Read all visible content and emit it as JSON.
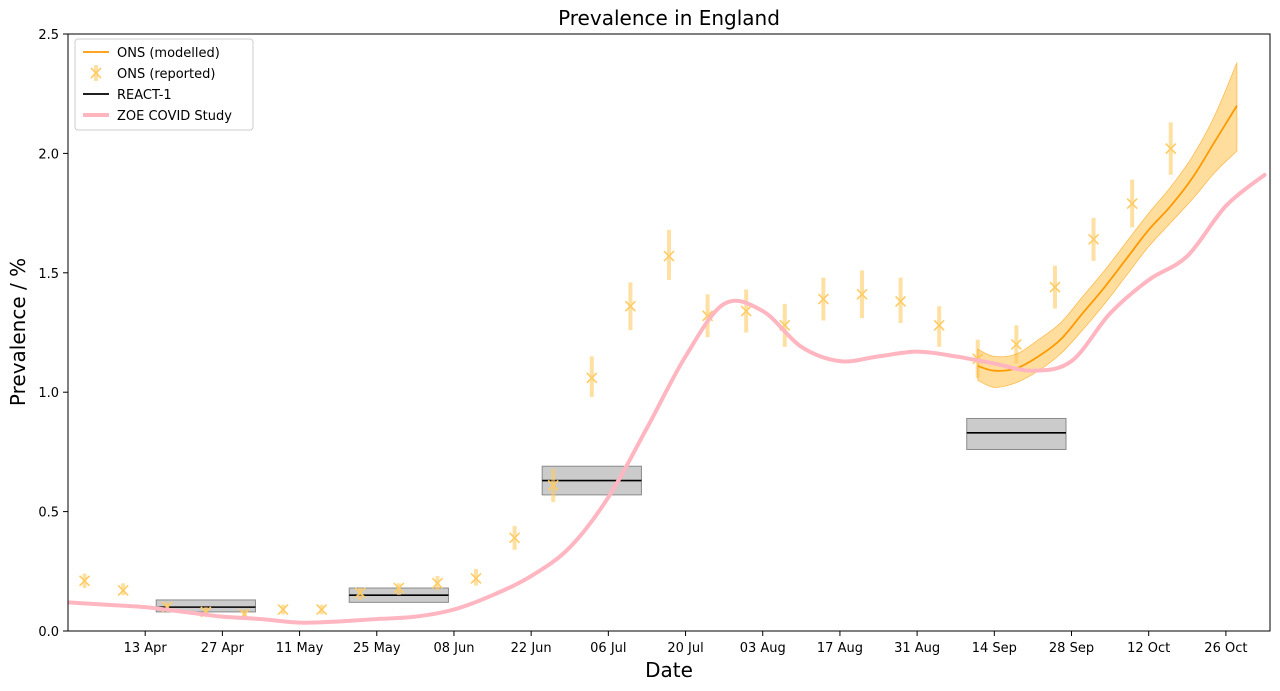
{
  "chart_data": {
    "type": "line",
    "title": "Prevalence in England",
    "xlabel": "Date",
    "ylabel": "Prevalence / %",
    "xlim": [
      "2021-03-30",
      "2021-11-03"
    ],
    "ylim": [
      0,
      2.5
    ],
    "x_ticks": [
      {
        "date": "2021-04-13",
        "label": "13 Apr"
      },
      {
        "date": "2021-04-27",
        "label": "27 Apr"
      },
      {
        "date": "2021-05-11",
        "label": "11 May"
      },
      {
        "date": "2021-05-25",
        "label": "25 May"
      },
      {
        "date": "2021-06-08",
        "label": "08 Jun"
      },
      {
        "date": "2021-06-22",
        "label": "22 Jun"
      },
      {
        "date": "2021-07-06",
        "label": "06 Jul"
      },
      {
        "date": "2021-07-20",
        "label": "20 Jul"
      },
      {
        "date": "2021-08-03",
        "label": "03 Aug"
      },
      {
        "date": "2021-08-17",
        "label": "17 Aug"
      },
      {
        "date": "2021-08-31",
        "label": "31 Aug"
      },
      {
        "date": "2021-09-14",
        "label": "14 Sep"
      },
      {
        "date": "2021-09-28",
        "label": "28 Sep"
      },
      {
        "date": "2021-10-12",
        "label": "12 Oct"
      },
      {
        "date": "2021-10-26",
        "label": "26 Oct"
      }
    ],
    "y_ticks": [
      {
        "value": 0,
        "label": "0.0"
      },
      {
        "value": 0.5,
        "label": "0.5"
      },
      {
        "value": 1.0,
        "label": "1.0"
      },
      {
        "value": 1.5,
        "label": "1.5"
      },
      {
        "value": 2.0,
        "label": "2.0"
      },
      {
        "value": 2.5,
        "label": "2.5"
      }
    ],
    "legend": {
      "position": "top-left",
      "entries": [
        {
          "label": "ONS (modelled)",
          "style": "line",
          "color": "#ff9900"
        },
        {
          "label": "ONS (reported)",
          "style": "marker",
          "color": "#ffcc66"
        },
        {
          "label": "REACT-1",
          "style": "line",
          "color": "#000000"
        },
        {
          "label": "ZOE COVID Study",
          "style": "thick-line",
          "color": "#ffb6c1"
        }
      ]
    },
    "series": [
      {
        "name": "ONS (modelled)",
        "color": "#ff9900",
        "band_color": "#ffc34d",
        "points": [
          {
            "date": "2021-09-11",
            "value": 1.11,
            "low": 1.05,
            "high": 1.18
          },
          {
            "date": "2021-09-14",
            "value": 1.09,
            "low": 1.02,
            "high": 1.15
          },
          {
            "date": "2021-09-18",
            "value": 1.1,
            "low": 1.04,
            "high": 1.16
          },
          {
            "date": "2021-09-22",
            "value": 1.15,
            "low": 1.09,
            "high": 1.22
          },
          {
            "date": "2021-09-26",
            "value": 1.22,
            "low": 1.16,
            "high": 1.29
          },
          {
            "date": "2021-09-30",
            "value": 1.33,
            "low": 1.26,
            "high": 1.4
          },
          {
            "date": "2021-10-04",
            "value": 1.44,
            "low": 1.37,
            "high": 1.51
          },
          {
            "date": "2021-10-08",
            "value": 1.56,
            "low": 1.49,
            "high": 1.63
          },
          {
            "date": "2021-10-12",
            "value": 1.68,
            "low": 1.61,
            "high": 1.75
          },
          {
            "date": "2021-10-16",
            "value": 1.78,
            "low": 1.71,
            "high": 1.86
          },
          {
            "date": "2021-10-20",
            "value": 1.9,
            "low": 1.81,
            "high": 1.99
          },
          {
            "date": "2021-10-24",
            "value": 2.05,
            "low": 1.92,
            "high": 2.16
          },
          {
            "date": "2021-10-28",
            "value": 2.2,
            "low": 2.01,
            "high": 2.38
          }
        ]
      },
      {
        "name": "ONS (reported)",
        "color": "#ffcc66",
        "points": [
          {
            "date": "2021-04-02",
            "value": 0.21,
            "low": 0.18,
            "high": 0.24
          },
          {
            "date": "2021-04-09",
            "value": 0.17,
            "low": 0.15,
            "high": 0.2
          },
          {
            "date": "2021-04-17",
            "value": 0.1,
            "low": 0.08,
            "high": 0.12
          },
          {
            "date": "2021-04-24",
            "value": 0.08,
            "low": 0.06,
            "high": 0.1
          },
          {
            "date": "2021-05-01",
            "value": 0.07,
            "low": 0.05,
            "high": 0.09
          },
          {
            "date": "2021-05-08",
            "value": 0.09,
            "low": 0.07,
            "high": 0.11
          },
          {
            "date": "2021-05-15",
            "value": 0.09,
            "low": 0.07,
            "high": 0.11
          },
          {
            "date": "2021-05-22",
            "value": 0.16,
            "low": 0.13,
            "high": 0.18
          },
          {
            "date": "2021-05-29",
            "value": 0.18,
            "low": 0.15,
            "high": 0.2
          },
          {
            "date": "2021-06-05",
            "value": 0.2,
            "low": 0.17,
            "high": 0.23
          },
          {
            "date": "2021-06-12",
            "value": 0.22,
            "low": 0.19,
            "high": 0.26
          },
          {
            "date": "2021-06-19",
            "value": 0.39,
            "low": 0.34,
            "high": 0.44
          },
          {
            "date": "2021-06-26",
            "value": 0.61,
            "low": 0.54,
            "high": 0.68
          },
          {
            "date": "2021-07-03",
            "value": 1.06,
            "low": 0.98,
            "high": 1.15
          },
          {
            "date": "2021-07-10",
            "value": 1.36,
            "low": 1.26,
            "high": 1.46
          },
          {
            "date": "2021-07-17",
            "value": 1.57,
            "low": 1.47,
            "high": 1.68
          },
          {
            "date": "2021-07-24",
            "value": 1.32,
            "low": 1.23,
            "high": 1.41
          },
          {
            "date": "2021-07-31",
            "value": 1.34,
            "low": 1.25,
            "high": 1.43
          },
          {
            "date": "2021-08-07",
            "value": 1.28,
            "low": 1.19,
            "high": 1.37
          },
          {
            "date": "2021-08-14",
            "value": 1.39,
            "low": 1.3,
            "high": 1.48
          },
          {
            "date": "2021-08-21",
            "value": 1.41,
            "low": 1.31,
            "high": 1.51
          },
          {
            "date": "2021-08-28",
            "value": 1.38,
            "low": 1.29,
            "high": 1.48
          },
          {
            "date": "2021-09-04",
            "value": 1.28,
            "low": 1.19,
            "high": 1.36
          },
          {
            "date": "2021-09-11",
            "value": 1.14,
            "low": 1.06,
            "high": 1.22
          },
          {
            "date": "2021-09-18",
            "value": 1.2,
            "low": 1.12,
            "high": 1.28
          },
          {
            "date": "2021-09-25",
            "value": 1.44,
            "low": 1.35,
            "high": 1.53
          },
          {
            "date": "2021-10-02",
            "value": 1.64,
            "low": 1.55,
            "high": 1.73
          },
          {
            "date": "2021-10-09",
            "value": 1.79,
            "low": 1.69,
            "high": 1.89
          },
          {
            "date": "2021-10-16",
            "value": 2.02,
            "low": 1.91,
            "high": 2.13
          }
        ]
      },
      {
        "name": "REACT-1",
        "color": "#000000",
        "band_color": "#c8c8c8",
        "rounds": [
          {
            "start": "2021-04-15",
            "end": "2021-05-03",
            "value": 0.1,
            "low": 0.08,
            "high": 0.13
          },
          {
            "start": "2021-05-20",
            "end": "2021-06-07",
            "value": 0.15,
            "low": 0.12,
            "high": 0.18
          },
          {
            "start": "2021-06-24",
            "end": "2021-07-12",
            "value": 0.63,
            "low": 0.57,
            "high": 0.69
          },
          {
            "start": "2021-09-09",
            "end": "2021-09-27",
            "value": 0.83,
            "low": 0.76,
            "high": 0.89
          }
        ]
      },
      {
        "name": "ZOE COVID Study",
        "color": "#ffb6c1",
        "points": [
          {
            "date": "2021-03-30",
            "value": 0.12
          },
          {
            "date": "2021-04-06",
            "value": 0.11
          },
          {
            "date": "2021-04-13",
            "value": 0.1
          },
          {
            "date": "2021-04-20",
            "value": 0.08
          },
          {
            "date": "2021-04-27",
            "value": 0.06
          },
          {
            "date": "2021-05-04",
            "value": 0.05
          },
          {
            "date": "2021-05-11",
            "value": 0.035
          },
          {
            "date": "2021-05-18",
            "value": 0.04
          },
          {
            "date": "2021-05-25",
            "value": 0.05
          },
          {
            "date": "2021-06-01",
            "value": 0.06
          },
          {
            "date": "2021-06-08",
            "value": 0.09
          },
          {
            "date": "2021-06-15",
            "value": 0.15
          },
          {
            "date": "2021-06-22",
            "value": 0.23
          },
          {
            "date": "2021-06-29",
            "value": 0.35
          },
          {
            "date": "2021-07-06",
            "value": 0.56
          },
          {
            "date": "2021-07-13",
            "value": 0.85
          },
          {
            "date": "2021-07-20",
            "value": 1.15
          },
          {
            "date": "2021-07-27",
            "value": 1.37
          },
          {
            "date": "2021-08-03",
            "value": 1.34
          },
          {
            "date": "2021-08-10",
            "value": 1.19
          },
          {
            "date": "2021-08-17",
            "value": 1.13
          },
          {
            "date": "2021-08-24",
            "value": 1.15
          },
          {
            "date": "2021-08-31",
            "value": 1.17
          },
          {
            "date": "2021-09-07",
            "value": 1.15
          },
          {
            "date": "2021-09-14",
            "value": 1.12
          },
          {
            "date": "2021-09-21",
            "value": 1.09
          },
          {
            "date": "2021-09-28",
            "value": 1.13
          },
          {
            "date": "2021-10-05",
            "value": 1.33
          },
          {
            "date": "2021-10-12",
            "value": 1.47
          },
          {
            "date": "2021-10-19",
            "value": 1.57
          },
          {
            "date": "2021-10-26",
            "value": 1.78
          },
          {
            "date": "2021-11-02",
            "value": 1.91
          }
        ]
      }
    ]
  }
}
